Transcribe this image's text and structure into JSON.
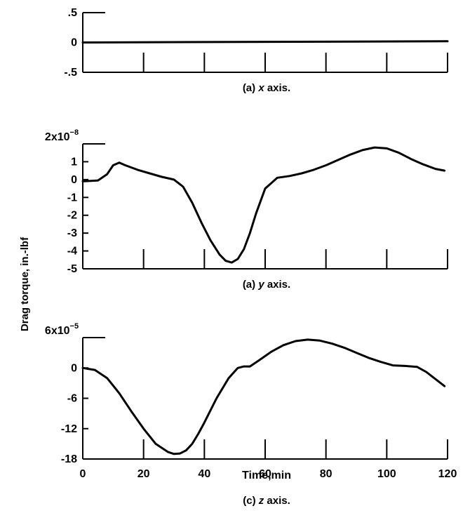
{
  "figure": {
    "ylabel": "Drag torque, in.-lbf",
    "xlabel": "Time,min"
  },
  "chart_data": [
    {
      "type": "line",
      "caption_prefix": "(a) ",
      "caption_var": "x",
      "caption_suffix": " axis.",
      "xlim": [
        0,
        120
      ],
      "ylim": [
        -0.5,
        0.5
      ],
      "ytick_labels": [
        ".5",
        "0",
        "-.5"
      ],
      "ytick_values": [
        0.5,
        0,
        -0.5
      ],
      "xtick_values": [
        20,
        40,
        60,
        80,
        100,
        120
      ],
      "series": [
        {
          "x": [
            0,
            120
          ],
          "y": [
            0,
            0.02
          ]
        }
      ]
    },
    {
      "type": "line",
      "caption_prefix": "(a) ",
      "caption_var": "y",
      "caption_suffix": " axis.",
      "multiplier_base": "2x10",
      "multiplier_exp": "−8",
      "xlim": [
        0,
        120
      ],
      "ylim": [
        -5,
        2
      ],
      "ytick_labels": [
        "1",
        "0",
        "-1",
        "-2",
        "-3",
        "-4",
        "-5"
      ],
      "ytick_values": [
        1,
        0,
        -1,
        -2,
        -3,
        -4,
        -5
      ],
      "xtick_values": [
        20,
        40,
        60,
        80,
        100,
        120
      ],
      "series": [
        {
          "x": [
            0,
            5,
            8,
            10,
            12,
            14,
            18,
            22,
            26,
            30,
            33,
            36,
            39,
            42,
            45,
            47,
            49,
            51,
            53,
            55,
            57,
            60,
            64,
            68,
            72,
            76,
            80,
            84,
            88,
            92,
            96,
            100,
            104,
            108,
            112,
            116,
            119
          ],
          "y": [
            -0.1,
            -0.05,
            0.3,
            0.8,
            0.95,
            0.8,
            0.55,
            0.35,
            0.15,
            0.0,
            -0.4,
            -1.3,
            -2.4,
            -3.4,
            -4.2,
            -4.55,
            -4.65,
            -4.45,
            -3.9,
            -3.0,
            -1.9,
            -0.5,
            0.1,
            0.2,
            0.35,
            0.55,
            0.8,
            1.1,
            1.4,
            1.65,
            1.8,
            1.75,
            1.5,
            1.15,
            0.85,
            0.6,
            0.5
          ]
        }
      ]
    },
    {
      "type": "line",
      "caption_prefix": "(c) ",
      "caption_var": "z",
      "caption_suffix": " axis.",
      "multiplier_base": "6x10",
      "multiplier_exp": "−5",
      "xlim": [
        0,
        120
      ],
      "ylim": [
        -18,
        6
      ],
      "ytick_labels": [
        "0",
        "-6",
        "-12",
        "-18"
      ],
      "ytick_values": [
        0,
        -6,
        -12,
        -18
      ],
      "xtick_labels": [
        "0",
        "20",
        "40",
        "60",
        "80",
        "100",
        "120"
      ],
      "xtick_values": [
        0,
        20,
        40,
        60,
        80,
        100,
        120
      ],
      "series": [
        {
          "x": [
            0,
            4,
            8,
            12,
            16,
            20,
            24,
            28,
            30,
            32,
            34,
            36,
            38,
            40,
            44,
            48,
            51,
            53,
            55,
            58,
            62,
            66,
            70,
            74,
            78,
            82,
            86,
            90,
            94,
            98,
            102,
            106,
            110,
            113,
            116,
            119
          ],
          "y": [
            0,
            -0.4,
            -2.0,
            -5.0,
            -8.6,
            -12.0,
            -15.0,
            -16.6,
            -17.0,
            -16.9,
            -16.3,
            -15.0,
            -13.0,
            -10.8,
            -6.0,
            -2.0,
            0.0,
            0.3,
            0.3,
            1.5,
            3.2,
            4.5,
            5.3,
            5.6,
            5.4,
            4.8,
            4.0,
            3.0,
            2.0,
            1.2,
            0.5,
            0.4,
            0.2,
            -0.8,
            -2.2,
            -3.6
          ]
        }
      ]
    }
  ]
}
